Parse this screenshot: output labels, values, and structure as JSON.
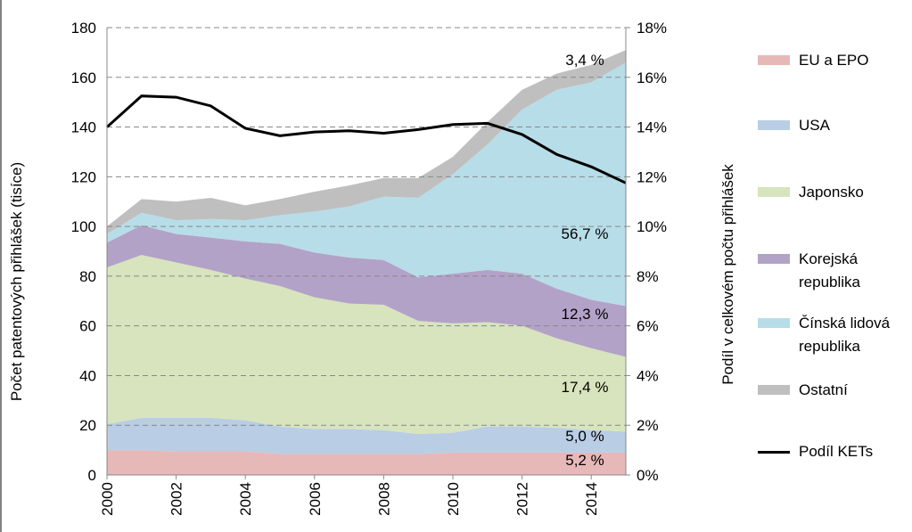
{
  "chart_data": {
    "type": "area",
    "y_label": "Počet patentových přihlášek (tisíce)",
    "y2_label": "Podíl v celkovém počtu přihlášek",
    "x": [
      2000,
      2001,
      2002,
      2003,
      2004,
      2005,
      2006,
      2007,
      2008,
      2009,
      2010,
      2011,
      2012,
      2013,
      2014,
      2015
    ],
    "xlim": [
      2000,
      2015
    ],
    "xticks": [
      2000,
      2002,
      2004,
      2006,
      2008,
      2010,
      2012,
      2014
    ],
    "ylim": [
      0,
      180
    ],
    "yticks": [
      0,
      20,
      40,
      60,
      80,
      100,
      120,
      140,
      160,
      180
    ],
    "y2lim": [
      0,
      18
    ],
    "y2ticks": [
      {
        "value": 0,
        "label": "0%"
      },
      {
        "value": 2,
        "label": "2%"
      },
      {
        "value": 4,
        "label": "4%"
      },
      {
        "value": 6,
        "label": "6%"
      },
      {
        "value": 8,
        "label": "8%"
      },
      {
        "value": 10,
        "label": "10%"
      },
      {
        "value": 12,
        "label": "12%"
      },
      {
        "value": 14,
        "label": "14%"
      },
      {
        "value": 16,
        "label": "16%"
      },
      {
        "value": 18,
        "label": "18%"
      }
    ],
    "grid": true,
    "stacked": true,
    "series": [
      {
        "name": "EU a EPO",
        "color": "#e6b9b8",
        "label": "5,2 %",
        "values": [
          10,
          10,
          9.5,
          9.5,
          9.5,
          8.5,
          8.5,
          8.5,
          8.5,
          8.5,
          9,
          9,
          9,
          9,
          9,
          9
        ]
      },
      {
        "name": "USA",
        "color": "#b9cde5",
        "label": "5,0 %",
        "values": [
          10.5,
          13,
          13.5,
          13.5,
          12.5,
          11,
          10,
          10,
          9.5,
          8,
          8,
          10.5,
          10.5,
          10,
          9,
          8.5
        ]
      },
      {
        "name": "Japonsko",
        "color": "#d7e4bd",
        "label": "17,4 %",
        "values": [
          63,
          65.5,
          62.5,
          59.5,
          57,
          56.5,
          53,
          50.5,
          50.5,
          45.5,
          44,
          42,
          40.5,
          36,
          33,
          30
        ]
      },
      {
        "name": "Korejská republika",
        "color": "#b3a2c7",
        "label": "12,3 %",
        "values": [
          10,
          12,
          11.5,
          13,
          15,
          17,
          18,
          18.5,
          18,
          17.5,
          20,
          21,
          21,
          20,
          19.5,
          20.5
        ]
      },
      {
        "name": "Čínská lidová republika",
        "color": "#b7dde8",
        "label": "56,7 %",
        "values": [
          3.5,
          5,
          5.5,
          7.5,
          8.5,
          11.5,
          16.5,
          20.5,
          25.5,
          32,
          40,
          50.5,
          66,
          80,
          87.5,
          98
        ]
      },
      {
        "name": "Ostatní",
        "color": "#bfbfbf",
        "label": "3,4 %",
        "values": [
          3,
          5.5,
          7.5,
          8.5,
          6,
          6.5,
          8,
          8.5,
          7.5,
          8,
          7,
          9,
          8,
          6.5,
          7,
          5
        ]
      },
      {
        "name": "Podíl KETs",
        "color": "#000000",
        "axis": "y2",
        "values": [
          14.0,
          15.25,
          15.2,
          14.85,
          13.95,
          13.65,
          13.8,
          13.85,
          13.75,
          13.9,
          14.1,
          14.15,
          13.7,
          12.9,
          12.4,
          11.75
        ]
      }
    ]
  }
}
